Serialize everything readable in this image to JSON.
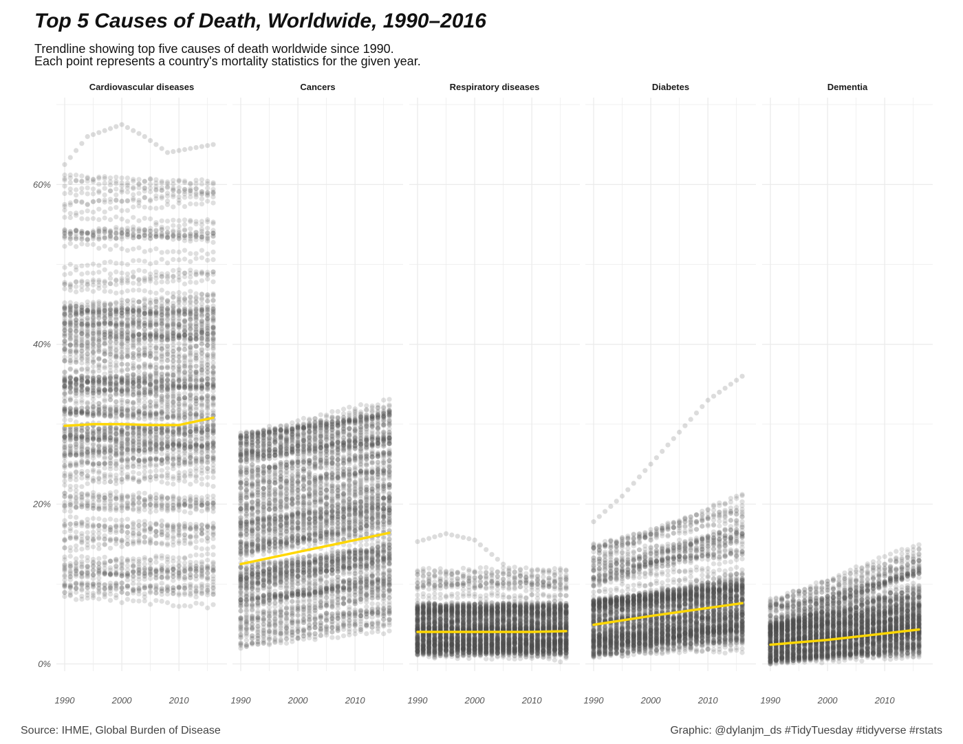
{
  "title": "Top 5 Causes of Death, Worldwide, 1990–2016",
  "subtitle_lines": [
    "Trendline showing top five causes of death worldwide since 1990.",
    "Each point represents a country's mortality statistics for the given year."
  ],
  "caption_left": "Source: IHME, Global Burden of Disease",
  "caption_right": "Graphic: @dylanjm_ds #TidyTuesday #tidyverse #rstats",
  "colors": {
    "points": "#505050",
    "trend": "#FFD700",
    "grid": "#EBEBEB"
  },
  "chart_data": {
    "type": "scatter",
    "facets": [
      "Cardiovascular diseases",
      "Cancers",
      "Respiratory diseases",
      "Diabetes",
      "Dementia"
    ],
    "x_range": [
      1990,
      2016
    ],
    "x_ticks": [
      1990,
      2000,
      2010
    ],
    "x_tick_labels": [
      "1990",
      "2000",
      "2010"
    ],
    "ylim": [
      0,
      70
    ],
    "y_ticks": [
      0,
      20,
      40,
      60
    ],
    "y_tick_labels": [
      "0%",
      "20%",
      "40%",
      "60%"
    ],
    "grid": true,
    "series": [
      {
        "facet": "Cardiovascular diseases",
        "trend": {
          "x": [
            1990,
            1995,
            2000,
            2005,
            2010,
            2016
          ],
          "y": [
            29.8,
            30.0,
            30.0,
            29.9,
            29.9,
            30.8
          ]
        },
        "approx_range_1990": [
          5,
          62
        ],
        "approx_range_2016": [
          6,
          65
        ],
        "upper_outliers": {
          "x": [
            1990,
            1994,
            2000,
            2004,
            2008,
            2016
          ],
          "y": [
            62.5,
            66,
            67.5,
            66,
            64,
            65
          ]
        }
      },
      {
        "facet": "Cancers",
        "trend": {
          "x": [
            1990,
            2000,
            2010,
            2016
          ],
          "y": [
            12.5,
            14.0,
            15.5,
            16.4
          ]
        },
        "approx_range_1990": [
          2,
          29
        ],
        "approx_range_2016": [
          4,
          33
        ]
      },
      {
        "facet": "Respiratory diseases",
        "trend": {
          "x": [
            1990,
            2000,
            2010,
            2016
          ],
          "y": [
            4.0,
            4.0,
            4.0,
            4.1
          ]
        },
        "approx_range_1990": [
          1,
          15
        ],
        "approx_range_2016": [
          1,
          14
        ],
        "upper_outliers": {
          "x": [
            1990,
            1995,
            2000,
            2005,
            2010,
            2016
          ],
          "y": [
            15.3,
            16.3,
            15.5,
            12.5,
            10.0,
            9.5
          ]
        }
      },
      {
        "facet": "Diabetes",
        "trend": {
          "x": [
            1990,
            2000,
            2010,
            2016
          ],
          "y": [
            4.9,
            6.0,
            7.0,
            7.6
          ]
        },
        "approx_range_1990": [
          1,
          18
        ],
        "approx_range_2016": [
          1,
          36
        ],
        "upper_outliers": {
          "x": [
            1990,
            1995,
            2000,
            2005,
            2010,
            2016
          ],
          "y": [
            17.8,
            21,
            25,
            29,
            33,
            36
          ]
        }
      },
      {
        "facet": "Dementia",
        "trend": {
          "x": [
            1990,
            2000,
            2010,
            2016
          ],
          "y": [
            2.4,
            3.0,
            3.8,
            4.3
          ]
        },
        "approx_range_1990": [
          0,
          9
        ],
        "approx_range_2016": [
          0,
          16.7
        ]
      }
    ]
  }
}
